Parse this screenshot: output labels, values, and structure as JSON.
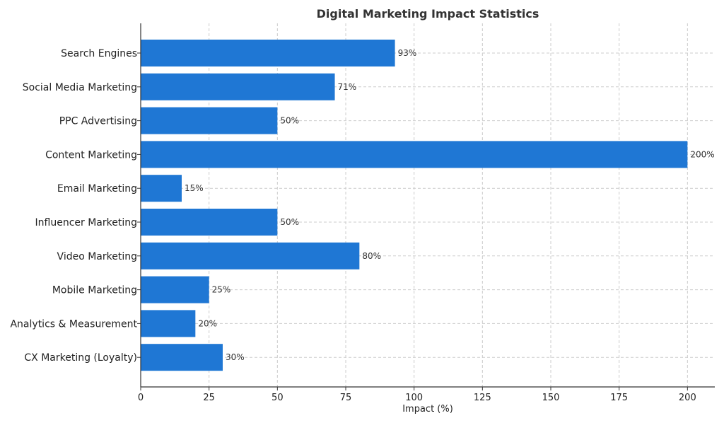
{
  "chart_data": {
    "type": "bar",
    "orientation": "horizontal",
    "title": "Digital Marketing Impact Statistics",
    "xlabel": "Impact (%)",
    "ylabel": "",
    "xlim": [
      0,
      210
    ],
    "xticks": [
      0,
      25,
      50,
      75,
      100,
      125,
      150,
      175,
      200
    ],
    "grid": true,
    "bar_color": "#1f77d4",
    "categories": [
      "Search Engines",
      "Social Media Marketing",
      "PPC Advertising",
      "Content Marketing",
      "Email Marketing",
      "Influencer Marketing",
      "Video Marketing",
      "Mobile Marketing",
      "Analytics & Measurement",
      "CX Marketing (Loyalty)"
    ],
    "values": [
      93,
      71,
      50,
      200,
      15,
      50,
      80,
      25,
      20,
      30
    ],
    "value_labels": [
      "93%",
      "71%",
      "50%",
      "200%",
      "15%",
      "50%",
      "80%",
      "25%",
      "20%",
      "30%"
    ]
  }
}
